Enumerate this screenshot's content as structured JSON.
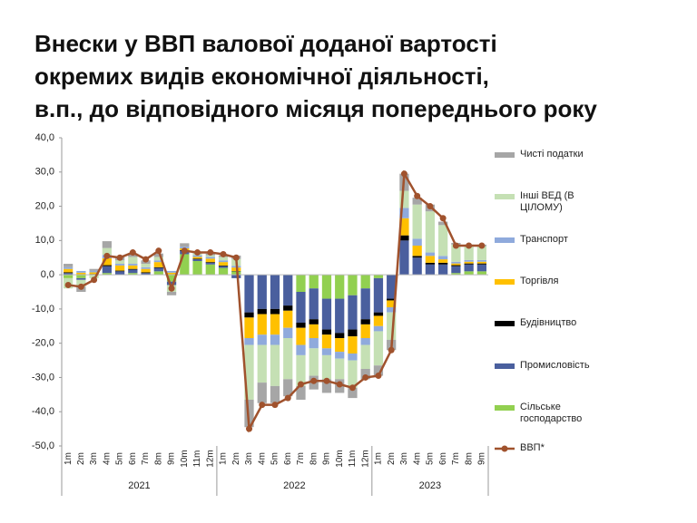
{
  "chart_data": {
    "type": "stacked-bar-line",
    "title": "Внески у ВВП валової доданої вартості\nокремих видів економічної діяльності,\nв.п., до відповідного місяця попереднього року",
    "categories": [
      "1m",
      "2m",
      "3m",
      "4m",
      "5m",
      "6m",
      "7m",
      "8m",
      "9m",
      "10m",
      "11m",
      "12m",
      "1m",
      "2m",
      "3m",
      "4m",
      "5m",
      "6m",
      "7m",
      "8m",
      "9m",
      "10m",
      "11m",
      "12m",
      "1m",
      "2m",
      "3m",
      "4m",
      "5m",
      "6m",
      "7m",
      "8m",
      "9m"
    ],
    "groups": [
      {
        "label": "2021",
        "count": 12
      },
      {
        "label": "2022",
        "count": 12
      },
      {
        "label": "2023",
        "count": 9
      }
    ],
    "ylim": [
      -50,
      40
    ],
    "yticks": [
      {
        "value": -50,
        "label": "-50,0"
      },
      {
        "value": -40,
        "label": "-40,0"
      },
      {
        "value": -30,
        "label": "-30,0"
      },
      {
        "value": -20,
        "label": "-20,0"
      },
      {
        "value": -10,
        "label": "-10,0"
      },
      {
        "value": 0,
        "label": "0,0"
      },
      {
        "value": 10,
        "label": "10,0"
      },
      {
        "value": 20,
        "label": "20,0"
      },
      {
        "value": 30,
        "label": "30,0"
      },
      {
        "value": 40,
        "label": "40,0"
      }
    ],
    "series": [
      {
        "name": "Чисті податки",
        "kind": "bar",
        "color": "#a6a6a6",
        "values": [
          1,
          -1.5,
          0.5,
          2,
          1,
          1,
          1,
          1,
          -1,
          1,
          0.5,
          0.5,
          0.5,
          1,
          -8,
          -6,
          -5,
          -5,
          -4,
          -4,
          -4,
          -4,
          -3,
          -3,
          -3,
          -3,
          5,
          2,
          2,
          1,
          0.5,
          0.5,
          0.5
        ]
      },
      {
        "name": "Інші ВЕД (В ЦІЛОМУ)",
        "kind": "bar",
        "color": "#c5e0b4",
        "values": [
          -3,
          -2,
          -1,
          2,
          1,
          2,
          1,
          1,
          -2,
          0,
          0.5,
          0.5,
          1,
          2,
          -16,
          -11,
          -12,
          -12,
          -9,
          -8,
          -7,
          -6,
          -8,
          -7,
          -10,
          -8,
          5,
          10,
          12,
          9,
          5,
          4,
          4
        ]
      },
      {
        "name": "Транспорт",
        "kind": "bar",
        "color": "#8faadc",
        "values": [
          0.5,
          0.5,
          0.5,
          1,
          0.5,
          0.5,
          0.5,
          0.5,
          0.5,
          0.5,
          0.5,
          0.5,
          0.5,
          0.5,
          -2,
          -3,
          -3,
          -3,
          -3,
          -3,
          -2,
          -2,
          -2,
          -2,
          -1.5,
          -1.5,
          3,
          2,
          1,
          1,
          0.5,
          0.5,
          0.5
        ]
      },
      {
        "name": "Торгівля",
        "kind": "bar",
        "color": "#ffc000",
        "values": [
          1,
          0.5,
          0.5,
          2,
          1.5,
          1,
          1,
          1.5,
          0.5,
          0.5,
          0.5,
          1,
          1,
          1,
          -6,
          -6,
          -6,
          -5,
          -5,
          -4,
          -4,
          -4,
          -5,
          -4,
          -3,
          -2,
          5,
          3,
          2,
          1,
          0.5,
          0.5,
          0.5
        ]
      },
      {
        "name": "Будівництво",
        "kind": "bar",
        "color": "#000000",
        "values": [
          0.2,
          0.1,
          0.2,
          0.3,
          0.2,
          0.2,
          0.2,
          0.2,
          0.1,
          0.2,
          0.2,
          0.2,
          0.2,
          0.1,
          -1.5,
          -1.5,
          -1.5,
          -1.5,
          -1.5,
          -1.5,
          -1.5,
          -1.5,
          -2,
          -1.5,
          -1,
          -0.5,
          1.5,
          0.5,
          0.5,
          0.5,
          0.3,
          0.3,
          0.3
        ]
      },
      {
        "name": "Промисловість",
        "kind": "bar",
        "color": "#4a5f9e",
        "values": [
          0.5,
          -0.5,
          0,
          2,
          1,
          1,
          0.5,
          1,
          -1,
          1,
          0.5,
          0.5,
          0.5,
          -1,
          -11,
          -10,
          -10,
          -9,
          -9,
          -9,
          -9,
          -10,
          -10,
          -9,
          -10,
          -7,
          10,
          5,
          3,
          3,
          2,
          2,
          2
        ]
      },
      {
        "name": "Сільське господарство",
        "kind": "bar",
        "color": "#92d050",
        "values": [
          -1,
          -1,
          0,
          0.5,
          0,
          0.5,
          0,
          1,
          -2,
          6,
          4,
          3,
          2,
          1,
          0,
          0,
          0,
          0,
          -5,
          -4,
          -7,
          -7,
          -6,
          -4,
          -1,
          0,
          0,
          0,
          0,
          0,
          0.5,
          1,
          1
        ]
      },
      {
        "name": "ВВП*",
        "kind": "line",
        "color": "#a0522d",
        "values": [
          -3,
          -3.5,
          -1.5,
          5.5,
          5,
          6.5,
          4.5,
          7,
          -4,
          7,
          6.5,
          6.5,
          6,
          5,
          -45,
          -38,
          -38,
          -36,
          -32,
          -31,
          -31,
          -32,
          -33,
          -30,
          -29.5,
          -22,
          29.5,
          23,
          20,
          16.5,
          8.5,
          8.5,
          8.5
        ]
      }
    ]
  }
}
